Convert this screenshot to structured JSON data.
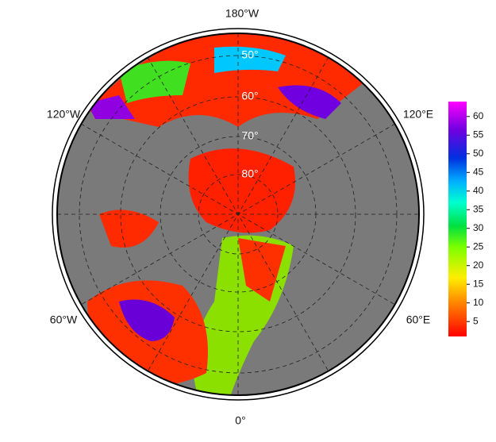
{
  "map": {
    "longitude_labels": {
      "top": "180°W",
      "upper_left": "120°W",
      "upper_right": "120°E",
      "lower_left": "60°W",
      "lower_right": "60°E",
      "bottom": "0°"
    },
    "latitude_labels": [
      "80°",
      "70°",
      "60°",
      "50°"
    ]
  },
  "colorbar": {
    "range": [
      1,
      64
    ],
    "ticks": [
      5,
      10,
      15,
      20,
      25,
      30,
      35,
      40,
      45,
      50,
      55,
      60
    ]
  }
}
